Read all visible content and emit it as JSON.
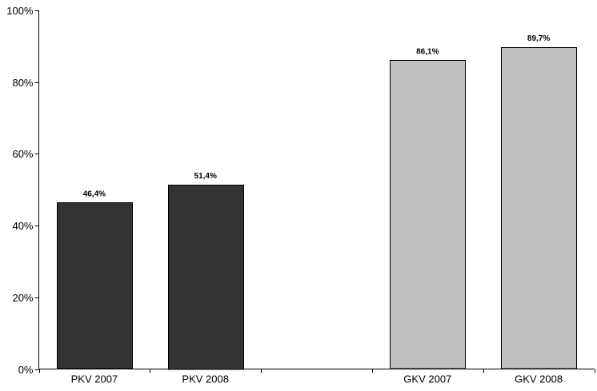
{
  "chart_data": {
    "type": "bar",
    "title": "",
    "xlabel": "",
    "ylabel": "",
    "ylim": [
      0,
      100
    ],
    "y_ticks": [
      0,
      20,
      40,
      60,
      80,
      100
    ],
    "y_tick_labels": [
      "0%",
      "20%",
      "40%",
      "60%",
      "80%",
      "100%"
    ],
    "grid": false,
    "legend": "none",
    "categories": [
      "PKV 2007",
      "PKV 2008",
      "",
      "GKV 2007",
      "GKV 2008"
    ],
    "values": [
      46.4,
      51.4,
      null,
      86.1,
      89.7
    ],
    "data_labels": [
      "46,4%",
      "51,4%",
      "",
      "86,1%",
      "89,7%"
    ],
    "bar_colors": [
      "#333333",
      "#333333",
      null,
      "#c0c0c0",
      "#c0c0c0"
    ]
  }
}
